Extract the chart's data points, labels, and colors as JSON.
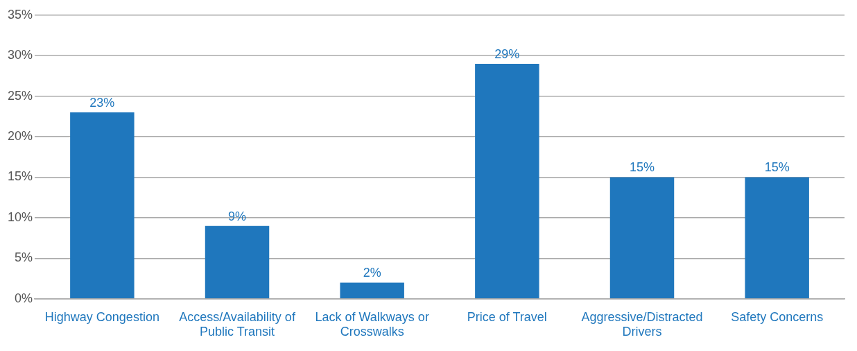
{
  "chart_data": {
    "type": "bar",
    "categories": [
      "Highway Congestion",
      "Access/Availability of Public Transit",
      "Lack of Walkways or Crosswalks",
      "Price of Travel",
      "Aggressive/Distracted Drivers",
      "Safety Concerns"
    ],
    "values": [
      23,
      9,
      2,
      29,
      15,
      15
    ],
    "color": "#1f77bd",
    "ylim": [
      0,
      35
    ],
    "yticks": [
      {
        "value": 0,
        "label": "0%"
      },
      {
        "value": 5,
        "label": "5%"
      },
      {
        "value": 10,
        "label": "10%"
      },
      {
        "value": 15,
        "label": "15%"
      },
      {
        "value": 20,
        "label": "20%"
      },
      {
        "value": 25,
        "label": "25%"
      },
      {
        "value": 30,
        "label": "30%"
      },
      {
        "value": 35,
        "label": "35%"
      }
    ],
    "grid": "y",
    "value_labels": [
      "23%",
      "9%",
      "2%",
      "29%",
      "15%",
      "15%"
    ],
    "legend": false
  }
}
